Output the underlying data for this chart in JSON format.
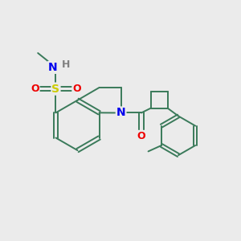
{
  "background_color": "#ebebeb",
  "bond_color": "#3a7a5a",
  "atom_colors": {
    "N": "#0000ee",
    "O": "#ee0000",
    "S": "#cccc00",
    "H": "#808080"
  },
  "figsize": [
    3.0,
    3.0
  ],
  "dpi": 100
}
